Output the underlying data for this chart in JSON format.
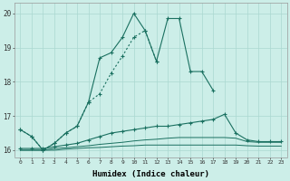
{
  "xlabel": "Humidex (Indice chaleur)",
  "x": [
    0,
    1,
    2,
    3,
    4,
    5,
    6,
    7,
    8,
    9,
    10,
    11,
    12,
    13,
    14,
    15,
    16,
    17,
    18,
    19,
    20,
    21,
    22,
    23
  ],
  "line1": [
    16.6,
    16.4,
    16.0,
    16.2,
    16.5,
    16.7,
    17.4,
    18.7,
    18.85,
    19.3,
    20.0,
    19.5,
    18.6,
    19.85,
    19.85,
    18.3,
    18.3,
    17.75,
    null,
    null,
    null,
    null,
    null,
    null
  ],
  "line2": [
    16.6,
    16.4,
    16.0,
    16.2,
    16.5,
    16.7,
    17.4,
    17.65,
    18.25,
    18.75,
    19.3,
    19.5,
    18.6,
    null,
    null,
    null,
    null,
    null,
    null,
    null,
    null,
    null,
    null,
    null
  ],
  "line3": [
    16.05,
    16.05,
    16.05,
    16.1,
    16.15,
    16.2,
    16.3,
    16.4,
    16.5,
    16.55,
    16.6,
    16.65,
    16.7,
    16.7,
    16.75,
    16.8,
    16.85,
    16.9,
    17.05,
    16.5,
    16.3,
    16.25,
    16.25,
    16.25
  ],
  "line4": [
    16.0,
    16.0,
    16.0,
    16.05,
    16.07,
    16.1,
    16.13,
    16.17,
    16.2,
    16.23,
    16.27,
    16.3,
    16.32,
    16.35,
    16.37,
    16.37,
    16.37,
    16.37,
    16.37,
    16.35,
    16.25,
    16.23,
    16.23,
    16.23
  ],
  "line5": [
    16.0,
    16.0,
    16.0,
    16.0,
    16.03,
    16.05,
    16.07,
    16.08,
    16.1,
    16.12,
    16.13,
    16.15,
    16.15,
    16.15,
    16.15,
    16.15,
    16.15,
    16.15,
    16.15,
    16.15,
    16.13,
    16.12,
    16.12,
    16.12
  ],
  "ylim": [
    15.8,
    20.3
  ],
  "yticks": [
    16,
    17,
    18,
    19,
    20
  ],
  "bg_color": "#cceee8",
  "grid_color": "#aad8d0",
  "line_color": "#1a7060"
}
